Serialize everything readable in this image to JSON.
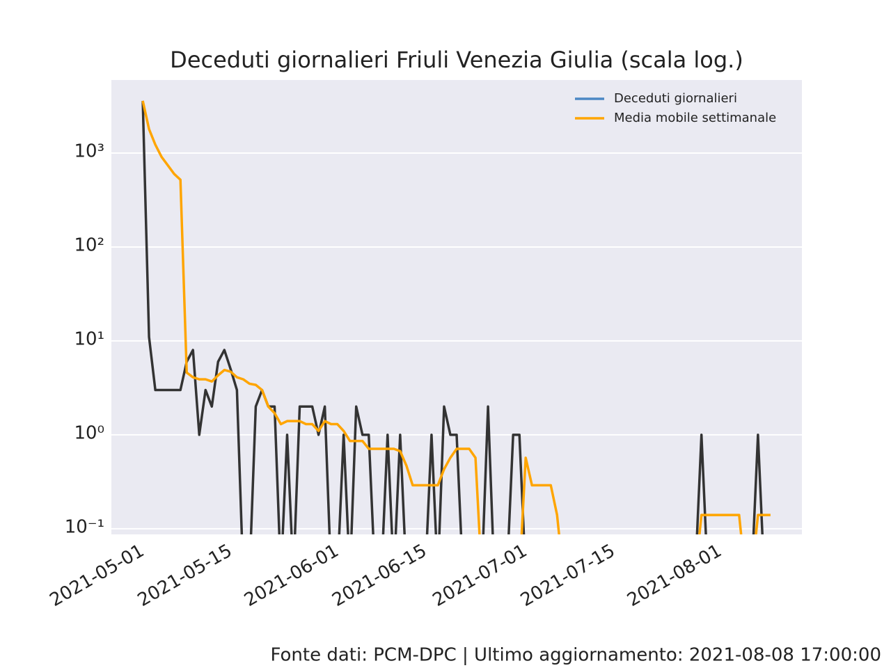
{
  "chart_data": {
    "type": "line",
    "title": "Deceduti giornalieri Friuli Venezia Giulia (scala log.)",
    "footer": "Fonte dati: PCM-DPC | Ultimo aggiornamento: 2021-08-08 17:00:00",
    "x": [
      "2021-05-01",
      "2021-05-02",
      "2021-05-03",
      "2021-05-04",
      "2021-05-05",
      "2021-05-06",
      "2021-05-07",
      "2021-05-08",
      "2021-05-09",
      "2021-05-10",
      "2021-05-11",
      "2021-05-12",
      "2021-05-13",
      "2021-05-14",
      "2021-05-15",
      "2021-05-16",
      "2021-05-17",
      "2021-05-18",
      "2021-05-19",
      "2021-05-20",
      "2021-05-21",
      "2021-05-22",
      "2021-05-23",
      "2021-05-24",
      "2021-05-25",
      "2021-05-26",
      "2021-05-27",
      "2021-05-28",
      "2021-05-29",
      "2021-05-30",
      "2021-05-31",
      "2021-06-01",
      "2021-06-02",
      "2021-06-03",
      "2021-06-04",
      "2021-06-05",
      "2021-06-06",
      "2021-06-07",
      "2021-06-08",
      "2021-06-09",
      "2021-06-10",
      "2021-06-11",
      "2021-06-12",
      "2021-06-13",
      "2021-06-14",
      "2021-06-15",
      "2021-06-16",
      "2021-06-17",
      "2021-06-18",
      "2021-06-19",
      "2021-06-20",
      "2021-06-21",
      "2021-06-22",
      "2021-06-23",
      "2021-06-24",
      "2021-06-25",
      "2021-06-26",
      "2021-06-27",
      "2021-06-28",
      "2021-06-29",
      "2021-06-30",
      "2021-07-01",
      "2021-07-02",
      "2021-07-03",
      "2021-07-04",
      "2021-07-05",
      "2021-07-06",
      "2021-07-07",
      "2021-07-08",
      "2021-07-09",
      "2021-07-10",
      "2021-07-11",
      "2021-07-12",
      "2021-07-13",
      "2021-07-14",
      "2021-07-15",
      "2021-07-16",
      "2021-07-17",
      "2021-07-18",
      "2021-07-19",
      "2021-07-20",
      "2021-07-21",
      "2021-07-22",
      "2021-07-23",
      "2021-07-24",
      "2021-07-25",
      "2021-07-26",
      "2021-07-27",
      "2021-07-28",
      "2021-07-29",
      "2021-07-30",
      "2021-07-31",
      "2021-08-01",
      "2021-08-02",
      "2021-08-03",
      "2021-08-04",
      "2021-08-05",
      "2021-08-06",
      "2021-08-07",
      "2021-08-08",
      "2021-08-09"
    ],
    "series": [
      {
        "name": "Deceduti giornalieri",
        "color": "#333333",
        "legend_color": "#4c88c4",
        "values": [
          3600,
          11,
          3,
          3,
          3,
          3,
          3,
          6,
          8,
          1,
          3,
          2,
          6,
          8,
          5,
          3,
          0,
          0,
          2,
          3,
          2,
          2,
          0,
          1,
          0,
          2,
          2,
          2,
          1,
          2,
          0,
          0,
          1,
          0,
          2,
          1,
          1,
          0,
          0,
          1,
          0,
          1,
          0,
          0,
          0,
          0,
          1,
          0,
          2,
          1,
          1,
          0,
          0,
          0,
          0,
          2,
          0,
          0,
          0,
          1,
          1,
          0,
          0,
          0,
          0,
          0,
          0,
          0,
          0,
          0,
          0,
          0,
          0,
          0,
          0,
          0,
          0,
          0,
          0,
          0,
          0,
          0,
          0,
          0,
          0,
          0,
          0,
          0,
          0,
          1,
          0,
          0,
          0,
          0,
          0,
          0,
          0,
          0,
          1,
          0,
          0
        ]
      },
      {
        "name": "Media mobile settimanale",
        "color": "#ffa500",
        "values": [
          3600,
          1800,
          1230,
          910,
          740,
          600,
          520,
          4.6,
          4.1,
          3.9,
          3.9,
          3.7,
          4.3,
          4.9,
          4.7,
          4.1,
          3.9,
          3.5,
          3.4,
          3.0,
          2.0,
          1.7,
          1.3,
          1.4,
          1.4,
          1.4,
          1.3,
          1.3,
          1.1,
          1.4,
          1.3,
          1.3,
          1.1,
          0.86,
          0.86,
          0.86,
          0.71,
          0.71,
          0.71,
          0.71,
          0.71,
          0.67,
          0.47,
          0.29,
          0.29,
          0.29,
          0.29,
          0.29,
          0.43,
          0.57,
          0.71,
          0.71,
          0.71,
          0.57,
          0,
          0,
          0,
          0,
          0,
          0,
          0,
          0.57,
          0.29,
          0.29,
          0.29,
          0.29,
          0.14,
          0,
          0,
          0,
          0,
          0,
          0,
          0,
          0,
          0,
          0,
          0,
          0,
          0,
          0,
          0,
          0,
          0,
          0,
          0,
          0,
          0,
          0,
          0.14,
          0.14,
          0.14,
          0.14,
          0.14,
          0.14,
          0.14,
          0,
          0,
          0.14,
          0.14,
          0.14
        ]
      }
    ],
    "xlim": [
      "2021-04-26",
      "2021-08-14"
    ],
    "xticks": [
      "2021-05-01",
      "2021-05-15",
      "2021-06-01",
      "2021-06-15",
      "2021-07-01",
      "2021-07-15",
      "2021-08-01"
    ],
    "ylim": [
      0.087,
      6000
    ],
    "yticks": [
      {
        "value": 0.1,
        "label": "10⁻¹"
      },
      {
        "value": 1,
        "label": "10⁰"
      },
      {
        "value": 10,
        "label": "10¹"
      },
      {
        "value": 100,
        "label": "10²"
      },
      {
        "value": 1000,
        "label": "10³"
      }
    ],
    "log_y": true,
    "grid": true,
    "legend": "upper right"
  }
}
